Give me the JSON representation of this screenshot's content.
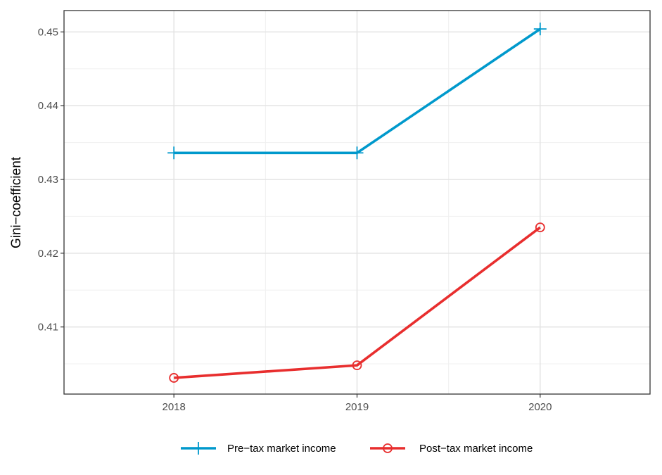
{
  "chart_data": {
    "type": "line",
    "title": "",
    "xlabel": "",
    "ylabel": "Gini−coefficient",
    "x": [
      "2018",
      "2019",
      "2020"
    ],
    "xlim": [
      2017.4,
      2020.6
    ],
    "ylim": [
      0.4009,
      0.4529
    ],
    "yticks": [
      0.41,
      0.42,
      0.43,
      0.44,
      0.45
    ],
    "ytick_labels": [
      "0.41",
      "0.42",
      "0.43",
      "0.44",
      "0.45"
    ],
    "grid": true,
    "legend_position": "bottom",
    "series": [
      {
        "name": "Pre−tax market income",
        "values": [
          0.4336,
          0.4336,
          0.4504
        ],
        "color": "#0099cc",
        "marker": "plus"
      },
      {
        "name": "Post−tax market income",
        "values": [
          0.4031,
          0.4048,
          0.4235
        ],
        "color": "#e82e2e",
        "marker": "open-circle"
      }
    ]
  }
}
